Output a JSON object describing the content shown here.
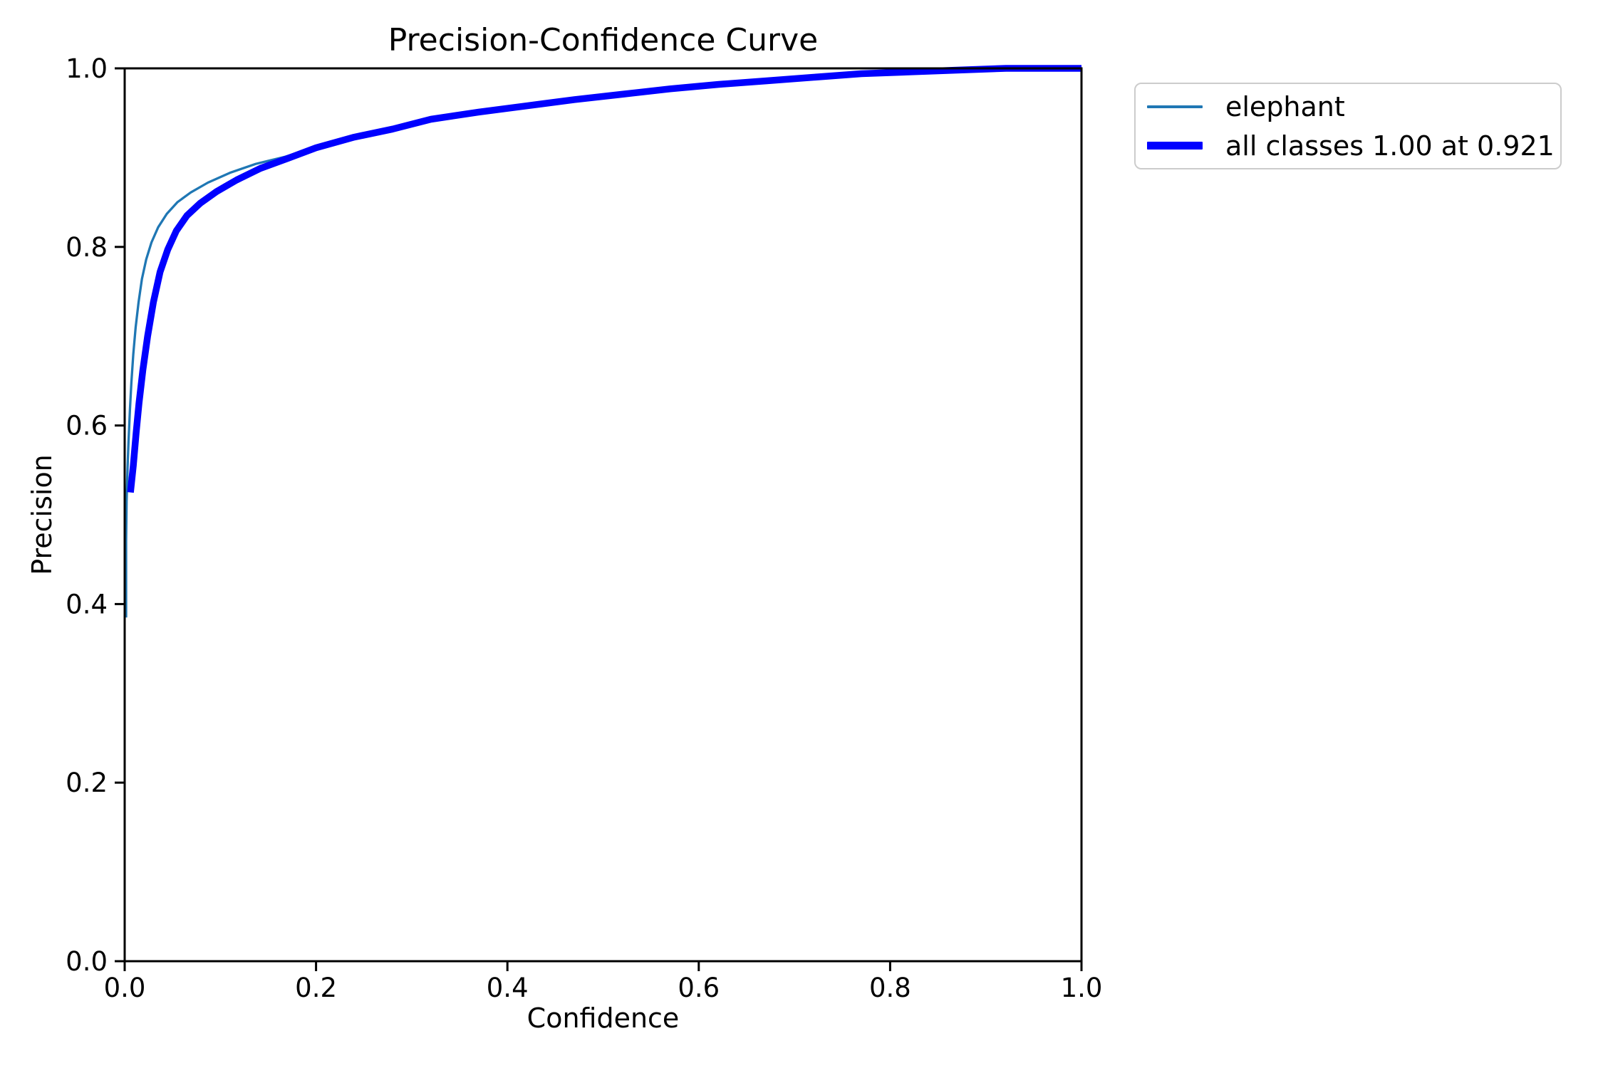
{
  "chart_data": {
    "type": "line",
    "title": "Precision-Confidence Curve",
    "xlabel": "Confidence",
    "ylabel": "Precision",
    "xlim": [
      0.0,
      1.0
    ],
    "ylim": [
      0.0,
      1.0
    ],
    "x_ticks": [
      "0.0",
      "0.2",
      "0.4",
      "0.6",
      "0.8",
      "1.0"
    ],
    "x_tick_values": [
      0.0,
      0.2,
      0.4,
      0.6,
      0.8,
      1.0
    ],
    "y_ticks": [
      "0.0",
      "0.2",
      "0.4",
      "0.6",
      "0.8",
      "1.0"
    ],
    "y_tick_values": [
      0.0,
      0.2,
      0.4,
      0.6,
      0.8,
      1.0
    ],
    "grid": false,
    "legend_position": "outside-upper-right",
    "axis_color": "#000000",
    "legend_border_color": "#cccccc",
    "series": [
      {
        "name": "elephant",
        "color": "#1f77b4",
        "linewidth": 3.3,
        "x": [
          0.0015,
          0.0015,
          0.002,
          0.003,
          0.004,
          0.0055,
          0.007,
          0.009,
          0.0115,
          0.0145,
          0.018,
          0.0225,
          0.028,
          0.035,
          0.044,
          0.055,
          0.069,
          0.087,
          0.11,
          0.137,
          0.168,
          0.2,
          0.24,
          0.28,
          0.32,
          0.37,
          0.42,
          0.47,
          0.52,
          0.57,
          0.62,
          0.67,
          0.72,
          0.77,
          0.82,
          0.87,
          0.921,
          0.96,
          1.0
        ],
        "y": [
          0.385,
          0.47,
          0.515,
          0.552,
          0.582,
          0.618,
          0.648,
          0.68,
          0.71,
          0.738,
          0.764,
          0.786,
          0.805,
          0.822,
          0.837,
          0.85,
          0.861,
          0.872,
          0.883,
          0.893,
          0.901,
          0.912,
          0.924,
          0.933,
          0.943,
          0.951,
          0.959,
          0.966,
          0.972,
          0.978,
          0.983,
          0.987,
          0.991,
          0.994,
          0.9965,
          0.9985,
          1.0,
          1.0,
          1.0
        ]
      },
      {
        "name": "all classes 1.00 at 0.921",
        "color": "#0000ff",
        "linewidth": 9.5,
        "x": [
          0.006,
          0.009,
          0.012,
          0.015,
          0.019,
          0.024,
          0.03,
          0.037,
          0.045,
          0.054,
          0.065,
          0.079,
          0.096,
          0.117,
          0.142,
          0.17,
          0.2,
          0.24,
          0.28,
          0.32,
          0.37,
          0.42,
          0.47,
          0.52,
          0.57,
          0.62,
          0.67,
          0.72,
          0.77,
          0.82,
          0.87,
          0.921,
          0.96,
          1.0
        ],
        "y": [
          0.525,
          0.555,
          0.592,
          0.625,
          0.662,
          0.7,
          0.738,
          0.772,
          0.797,
          0.818,
          0.835,
          0.849,
          0.862,
          0.875,
          0.888,
          0.899,
          0.911,
          0.923,
          0.932,
          0.943,
          0.951,
          0.958,
          0.965,
          0.971,
          0.977,
          0.982,
          0.986,
          0.99,
          0.994,
          0.996,
          0.998,
          1.0,
          1.0,
          1.0
        ]
      }
    ],
    "annotation": {
      "best_value": "1.00",
      "best_confidence": "0.921"
    }
  }
}
